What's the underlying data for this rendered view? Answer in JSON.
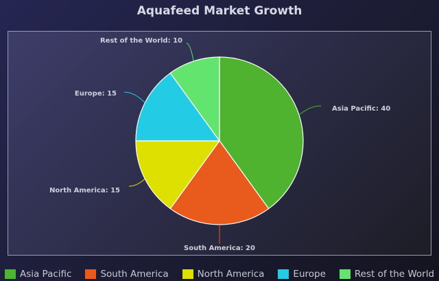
{
  "chart_data": {
    "type": "pie",
    "title": "Aquafeed Market Growth",
    "slices": [
      {
        "label": "Asia Pacific",
        "value": 40,
        "color": "#4fb330"
      },
      {
        "label": "South America",
        "value": 20,
        "color": "#e85b1c"
      },
      {
        "label": "North America",
        "value": 15,
        "color": "#dde000"
      },
      {
        "label": "Europe",
        "value": 15,
        "color": "#23cbe4"
      },
      {
        "label": "Rest of the World",
        "value": 10,
        "color": "#63e46e"
      }
    ],
    "data_labels": [
      "Asia Pacific: 40",
      "South America: 20",
      "North America: 15",
      "Europe: 15",
      "Rest of the World: 10"
    ],
    "legend_position": "bottom"
  }
}
